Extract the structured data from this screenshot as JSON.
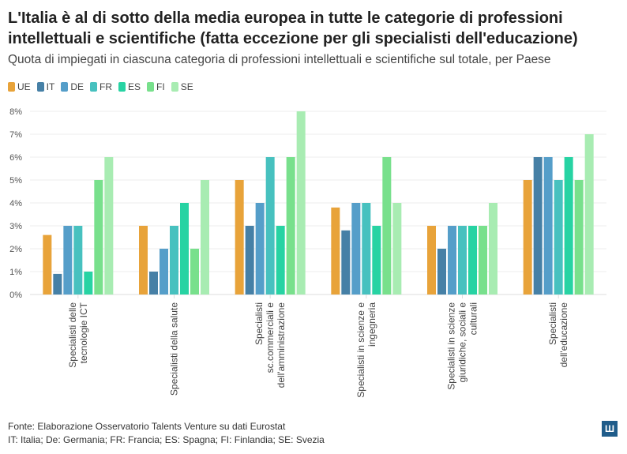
{
  "title": "L'Italia è al di sotto della media europea in tutte le categorie di professioni intellettuali e scientifiche (fatta eccezione per gli specialisti dell'educazione)",
  "subtitle": "Quota di impiegati in ciascuna categoria di professioni intellettuali e scientifiche sul totale, per Paese",
  "footer": {
    "source": "Fonte: Elaborazione Osservatorio Talents Venture su dati Eurostat",
    "note": "IT: Italia; De: Germania; FR: Francia; ES: Spagna; FI: Finlandia; SE: Svezia"
  },
  "chart_data": {
    "type": "bar",
    "categories": [
      [
        "Specialisti delle",
        "tecnologie ICT"
      ],
      [
        "Specialisti della salute"
      ],
      [
        "Specialisti",
        "sc.commerciali e",
        "dell'amministrazione"
      ],
      [
        "Specialisti in scienze e",
        "ingegneria"
      ],
      [
        "Specialisti in scienze",
        "giuridiche, sociali e",
        "culturali"
      ],
      [
        "Specialisti",
        "dell'educazione"
      ]
    ],
    "series": [
      {
        "name": "UE",
        "color": "#e8a33a",
        "values": [
          2.6,
          3,
          5,
          3.8,
          3,
          5
        ]
      },
      {
        "name": "IT",
        "color": "#4680a6",
        "values": [
          0.9,
          1,
          3,
          2.8,
          2,
          6
        ]
      },
      {
        "name": "DE",
        "color": "#559ec9",
        "values": [
          3,
          2,
          4,
          4,
          3,
          6
        ]
      },
      {
        "name": "FR",
        "color": "#47c1bf",
        "values": [
          3,
          3,
          6,
          4,
          3,
          5
        ]
      },
      {
        "name": "ES",
        "color": "#27d3a3",
        "values": [
          1,
          4,
          3,
          3,
          3,
          6
        ]
      },
      {
        "name": "FI",
        "color": "#78e08c",
        "values": [
          5,
          2,
          6,
          6,
          3,
          5
        ]
      },
      {
        "name": "SE",
        "color": "#a8ecb2",
        "values": [
          6,
          5,
          8,
          4,
          4,
          7
        ]
      }
    ],
    "ylim": [
      0,
      8
    ],
    "yticks": [
      "0%",
      "1%",
      "2%",
      "3%",
      "4%",
      "5%",
      "6%",
      "7%",
      "8%"
    ],
    "grid": true,
    "legend": "top-left"
  }
}
